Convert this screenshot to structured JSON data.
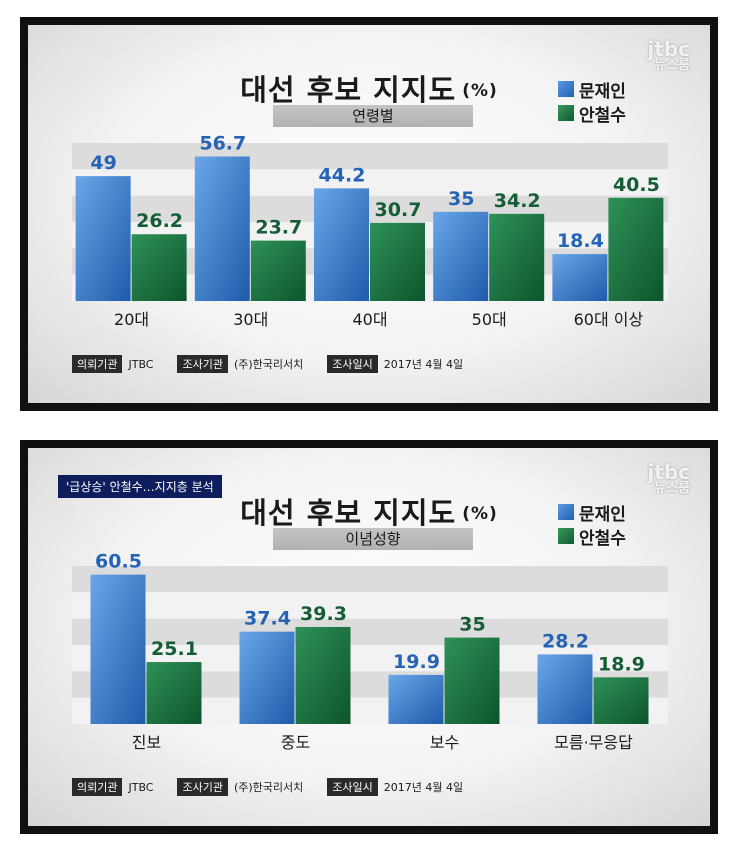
{
  "panels": [
    {
      "title": "대선 후보 지지도",
      "title_unit": "(%)",
      "subtitle": "연령별",
      "logo": {
        "line1": "jtbc",
        "line2": "뉴스룸"
      },
      "legend": [
        {
          "label": "문재인",
          "color": "#2a6fc4"
        },
        {
          "label": "안철수",
          "color": "#13703a"
        }
      ],
      "footer": {
        "commissioner_tag": "의뢰기관",
        "commissioner": "JTBC",
        "surveyor_tag": "조사기관",
        "surveyor": "(주)한국리서치",
        "date_tag": "조사일시",
        "date": "2017년 4월 4일"
      }
    },
    {
      "headline": "'급상승' 안철수…지지층 분석",
      "title": "대선 후보 지지도",
      "title_unit": "(%)",
      "subtitle": "이념성향",
      "logo": {
        "line1": "jtbc",
        "line2": "뉴스룸"
      },
      "legend": [
        {
          "label": "문재인",
          "color": "#2a6fc4"
        },
        {
          "label": "안철수",
          "color": "#13703a"
        }
      ],
      "footer": {
        "commissioner_tag": "의뢰기관",
        "commissioner": "JTBC",
        "surveyor_tag": "조사기관",
        "surveyor": "(주)한국리서치",
        "date_tag": "조사일시",
        "date": "2017년 4월 4일"
      }
    }
  ],
  "chart_data": [
    {
      "type": "bar",
      "title": "대선 후보 지지도 (%)",
      "subtitle": "연령별",
      "categories": [
        "20대",
        "30대",
        "40대",
        "50대",
        "60대 이상"
      ],
      "series": [
        {
          "name": "문재인",
          "values": [
            49,
            56.7,
            44.2,
            35,
            18.4
          ]
        },
        {
          "name": "안철수",
          "values": [
            26.2,
            23.7,
            30.7,
            34.2,
            40.5
          ]
        }
      ],
      "ylim": [
        0,
        62
      ],
      "grid": "horizontal bands",
      "legend": "top-right"
    },
    {
      "type": "bar",
      "title": "대선 후보 지지도 (%)",
      "subtitle": "이념성향",
      "categories": [
        "진보",
        "중도",
        "보수",
        "모름·무응답"
      ],
      "series": [
        {
          "name": "문재인",
          "values": [
            60.5,
            37.4,
            19.9,
            28.2
          ]
        },
        {
          "name": "안철수",
          "values": [
            25.1,
            39.3,
            35,
            18.9
          ]
        }
      ],
      "ylim": [
        0,
        64
      ],
      "grid": "horizontal bands",
      "legend": "top-right"
    }
  ]
}
